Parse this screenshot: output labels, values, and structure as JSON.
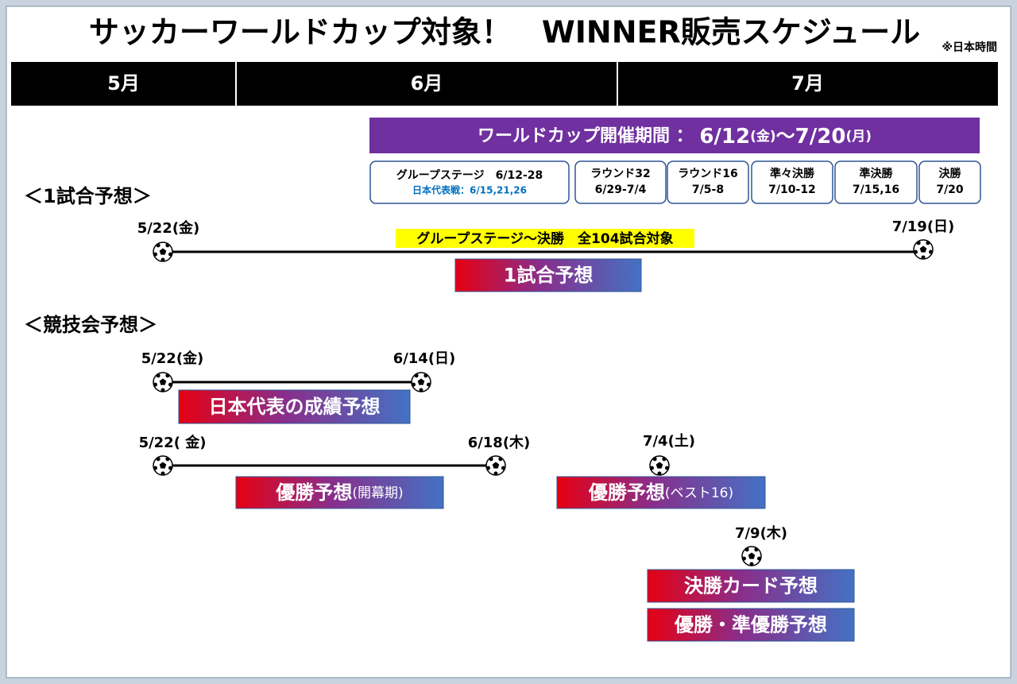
{
  "header": {
    "title": "サッカーワールドカップ対象！　WINNER販売スケジュール",
    "note": "※日本時間"
  },
  "months": [
    "5月",
    "6月",
    "7月"
  ],
  "tournament": {
    "label": "ワールドカップ開催期間 ： ",
    "start": "6/12",
    "start_day": "(金)",
    "sep": "〜",
    "end": "7/20",
    "end_day": "(月)"
  },
  "stages": [
    {
      "lines": [
        "グループステージ　6/12-28",
        "日本代表戦：6/15,21,26"
      ]
    },
    {
      "lines": [
        "ラウンド32",
        "6/29-7/4"
      ]
    },
    {
      "lines": [
        "ラウンド16",
        "7/5-8"
      ]
    },
    {
      "lines": [
        "準々決勝",
        "7/10-12"
      ]
    },
    {
      "lines": [
        "準決勝",
        "7/15,16"
      ]
    },
    {
      "lines": [
        "決勝",
        "7/20"
      ]
    }
  ],
  "single": {
    "heading": "＜1試合予想＞",
    "start": "5/22(金)",
    "end": "7/19(日)",
    "scope": "グループステージ〜決勝　全104試合対象",
    "product": "1試合予想"
  },
  "contest": {
    "heading": "＜競技会予想＞",
    "items": [
      {
        "start": "5/22(金)",
        "end": "6/14(日)",
        "product": "日本代表の成績予想"
      },
      {
        "start": "5/22( 金)",
        "end": "6/18(木)",
        "product": "優勝予想",
        "note": "(開幕期)"
      },
      {
        "start": "7/4(土)",
        "product": "優勝予想",
        "note": "(ベスト16)"
      },
      {
        "start": "7/9(木)",
        "products": [
          "決勝カード予想",
          "優勝・準優勝予想"
        ]
      }
    ]
  }
}
